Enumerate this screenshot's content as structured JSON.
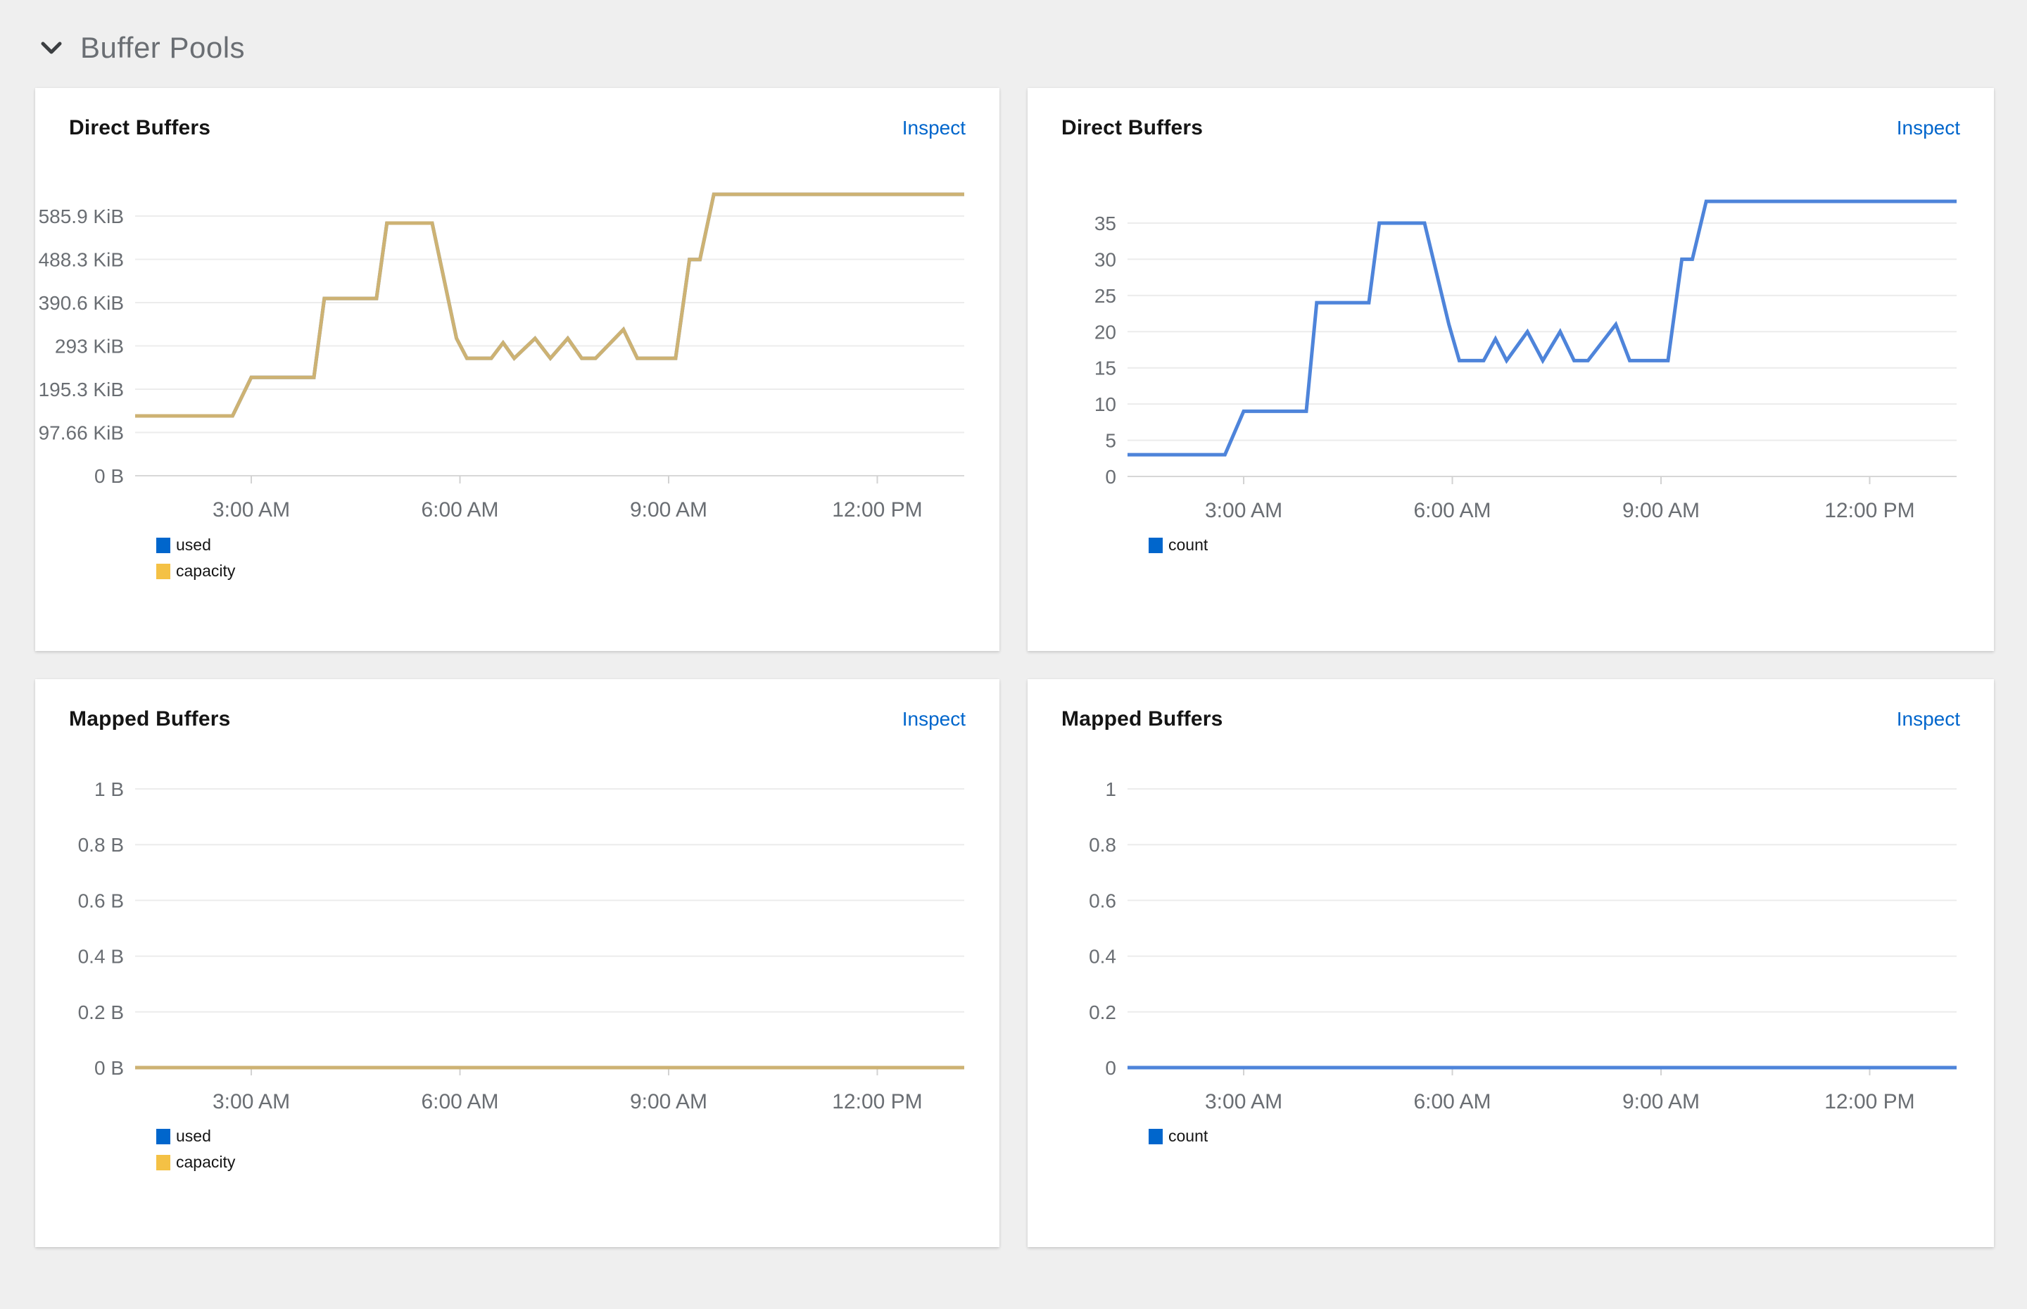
{
  "section": {
    "title": "Buffer Pools"
  },
  "cards": [
    {
      "title": "Direct Buffers",
      "action_label": "Inspect"
    },
    {
      "title": "Direct Buffers",
      "action_label": "Inspect"
    },
    {
      "title": "Mapped Buffers",
      "action_label": "Inspect"
    },
    {
      "title": "Mapped Buffers",
      "action_label": "Inspect"
    }
  ],
  "colors": {
    "page_background": "#efefef",
    "card_background": "#ffffff",
    "link": "#0066cc",
    "axis_text": "#6a6e73",
    "gridline": "#ececec",
    "axis_line": "#d7d7d7",
    "tick_mark": "#d2d2d2",
    "title_text": "#151515",
    "section_text": "#6a6e73",
    "legend_blue": "#0066cc",
    "legend_gold": "#f4c145",
    "line_blue": "#4e84da",
    "line_gold": "#cdb273"
  },
  "chart_data": [
    {
      "type": "line",
      "title": "Direct Buffers",
      "x_unit": "time of day (hours)",
      "x_range": [
        1.33,
        13.25
      ],
      "xticks": [
        {
          "value": 3,
          "label": "3:00 AM"
        },
        {
          "value": 6,
          "label": "6:00 AM"
        },
        {
          "value": 9,
          "label": "9:00 AM"
        },
        {
          "value": 12,
          "label": "12:00 PM"
        }
      ],
      "y_unit": "KiB",
      "ylim": [
        0,
        585.9
      ],
      "yticks": [
        {
          "value": 0,
          "label": "0 B"
        },
        {
          "value": 97.66,
          "label": "97.66 KiB"
        },
        {
          "value": 195.3,
          "label": "195.3 KiB"
        },
        {
          "value": 293,
          "label": "293 KiB"
        },
        {
          "value": 390.6,
          "label": "390.6 KiB"
        },
        {
          "value": 488.3,
          "label": "488.3 KiB"
        },
        {
          "value": 585.9,
          "label": "585.9 KiB"
        }
      ],
      "grid": "horizontal",
      "legend_position": "bottom-left",
      "series": [
        {
          "name": "used",
          "legend_color": "#0066cc",
          "line_color": "#4e84da",
          "points": [
            [
              1.33,
              135
            ],
            [
              2.73,
              135
            ],
            [
              3.0,
              222
            ],
            [
              3.9,
              222
            ],
            [
              4.05,
              400
            ],
            [
              4.8,
              400
            ],
            [
              4.95,
              570
            ],
            [
              5.6,
              570
            ],
            [
              5.95,
              310
            ],
            [
              6.1,
              265
            ],
            [
              6.45,
              265
            ],
            [
              6.62,
              300
            ],
            [
              6.78,
              265
            ],
            [
              7.08,
              310
            ],
            [
              7.3,
              265
            ],
            [
              7.55,
              310
            ],
            [
              7.75,
              265
            ],
            [
              7.95,
              265
            ],
            [
              8.35,
              330
            ],
            [
              8.55,
              265
            ],
            [
              9.1,
              265
            ],
            [
              9.3,
              488
            ],
            [
              9.45,
              488
            ],
            [
              9.65,
              635
            ],
            [
              13.25,
              635
            ]
          ]
        },
        {
          "name": "capacity",
          "legend_color": "#f4c145",
          "line_color": "#cdb273",
          "points": [
            [
              1.33,
              135
            ],
            [
              2.73,
              135
            ],
            [
              3.0,
              222
            ],
            [
              3.9,
              222
            ],
            [
              4.05,
              400
            ],
            [
              4.8,
              400
            ],
            [
              4.95,
              570
            ],
            [
              5.6,
              570
            ],
            [
              5.95,
              310
            ],
            [
              6.1,
              265
            ],
            [
              6.45,
              265
            ],
            [
              6.62,
              300
            ],
            [
              6.78,
              265
            ],
            [
              7.08,
              310
            ],
            [
              7.3,
              265
            ],
            [
              7.55,
              310
            ],
            [
              7.75,
              265
            ],
            [
              7.95,
              265
            ],
            [
              8.35,
              330
            ],
            [
              8.55,
              265
            ],
            [
              9.1,
              265
            ],
            [
              9.3,
              488
            ],
            [
              9.45,
              488
            ],
            [
              9.65,
              635
            ],
            [
              13.25,
              635
            ]
          ]
        }
      ]
    },
    {
      "type": "line",
      "title": "Direct Buffers",
      "x_unit": "time of day (hours)",
      "x_range": [
        1.33,
        13.25
      ],
      "xticks": [
        {
          "value": 3,
          "label": "3:00 AM"
        },
        {
          "value": 6,
          "label": "6:00 AM"
        },
        {
          "value": 9,
          "label": "9:00 AM"
        },
        {
          "value": 12,
          "label": "12:00 PM"
        }
      ],
      "y_unit": "count",
      "ylim": [
        0,
        35
      ],
      "yticks": [
        {
          "value": 0,
          "label": "0"
        },
        {
          "value": 5,
          "label": "5"
        },
        {
          "value": 10,
          "label": "10"
        },
        {
          "value": 15,
          "label": "15"
        },
        {
          "value": 20,
          "label": "20"
        },
        {
          "value": 25,
          "label": "25"
        },
        {
          "value": 30,
          "label": "30"
        },
        {
          "value": 35,
          "label": "35"
        }
      ],
      "grid": "horizontal",
      "legend_position": "bottom-left",
      "series": [
        {
          "name": "count",
          "legend_color": "#0066cc",
          "line_color": "#4e84da",
          "points": [
            [
              1.33,
              3
            ],
            [
              2.73,
              3
            ],
            [
              3.0,
              9
            ],
            [
              3.9,
              9
            ],
            [
              4.05,
              24
            ],
            [
              4.8,
              24
            ],
            [
              4.95,
              35
            ],
            [
              5.6,
              35
            ],
            [
              5.95,
              21
            ],
            [
              6.1,
              16
            ],
            [
              6.45,
              16
            ],
            [
              6.62,
              19
            ],
            [
              6.78,
              16
            ],
            [
              7.08,
              20
            ],
            [
              7.3,
              16
            ],
            [
              7.55,
              20
            ],
            [
              7.75,
              16
            ],
            [
              7.95,
              16
            ],
            [
              8.35,
              21
            ],
            [
              8.55,
              16
            ],
            [
              9.1,
              16
            ],
            [
              9.3,
              30
            ],
            [
              9.45,
              30
            ],
            [
              9.65,
              38
            ],
            [
              13.25,
              38
            ]
          ]
        }
      ]
    },
    {
      "type": "line",
      "title": "Mapped Buffers",
      "x_unit": "time of day (hours)",
      "x_range": [
        1.33,
        13.25
      ],
      "xticks": [
        {
          "value": 3,
          "label": "3:00 AM"
        },
        {
          "value": 6,
          "label": "6:00 AM"
        },
        {
          "value": 9,
          "label": "9:00 AM"
        },
        {
          "value": 12,
          "label": "12:00 PM"
        }
      ],
      "y_unit": "B",
      "ylim": [
        0,
        1
      ],
      "yticks": [
        {
          "value": 0,
          "label": "0 B"
        },
        {
          "value": 0.2,
          "label": "0.2 B"
        },
        {
          "value": 0.4,
          "label": "0.4 B"
        },
        {
          "value": 0.6,
          "label": "0.6 B"
        },
        {
          "value": 0.8,
          "label": "0.8 B"
        },
        {
          "value": 1,
          "label": "1 B"
        }
      ],
      "grid": "horizontal",
      "legend_position": "bottom-left",
      "series": [
        {
          "name": "used",
          "legend_color": "#0066cc",
          "line_color": "#4e84da",
          "points": [
            [
              1.33,
              0
            ],
            [
              13.25,
              0
            ]
          ]
        },
        {
          "name": "capacity",
          "legend_color": "#f4c145",
          "line_color": "#cdb273",
          "points": [
            [
              1.33,
              0
            ],
            [
              13.25,
              0
            ]
          ]
        }
      ]
    },
    {
      "type": "line",
      "title": "Mapped Buffers",
      "x_unit": "time of day (hours)",
      "x_range": [
        1.33,
        13.25
      ],
      "xticks": [
        {
          "value": 3,
          "label": "3:00 AM"
        },
        {
          "value": 6,
          "label": "6:00 AM"
        },
        {
          "value": 9,
          "label": "9:00 AM"
        },
        {
          "value": 12,
          "label": "12:00 PM"
        }
      ],
      "y_unit": "count",
      "ylim": [
        0,
        1
      ],
      "yticks": [
        {
          "value": 0,
          "label": "0"
        },
        {
          "value": 0.2,
          "label": "0.2"
        },
        {
          "value": 0.4,
          "label": "0.4"
        },
        {
          "value": 0.6,
          "label": "0.6"
        },
        {
          "value": 0.8,
          "label": "0.8"
        },
        {
          "value": 1,
          "label": "1"
        }
      ],
      "grid": "horizontal",
      "legend_position": "bottom-left",
      "series": [
        {
          "name": "count",
          "legend_color": "#0066cc",
          "line_color": "#4e84da",
          "points": [
            [
              1.33,
              0
            ],
            [
              13.25,
              0
            ]
          ]
        }
      ]
    }
  ]
}
